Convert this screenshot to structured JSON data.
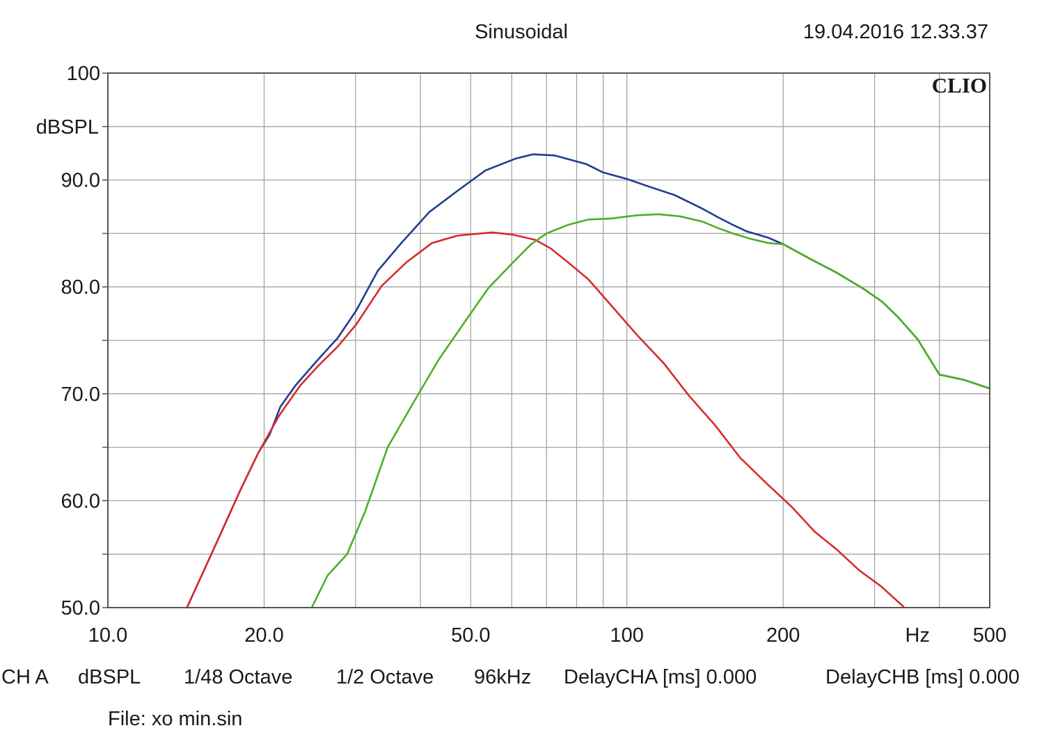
{
  "header": {
    "title": "Sinusoidal",
    "timestamp": "19.04.2016 12.33.37",
    "brand": "CLIO"
  },
  "footer": {
    "channel": "CH A",
    "units": "dBSPL",
    "resolution": "1/48 Octave",
    "smoothing": "1/2 Octave",
    "sample_rate": "96kHz",
    "delay_a": "DelayCHA [ms] 0.000",
    "delay_b": "DelayCHB [ms] 0.000",
    "file": "File: xo min.sin"
  },
  "chart_data": {
    "type": "line",
    "xscale": "log",
    "xlim": [
      10,
      500
    ],
    "ylim": [
      50,
      100
    ],
    "ylabel": "dBSPL",
    "xunit_label": "Hz",
    "grid": true,
    "x_ticks": [
      {
        "value": 10,
        "label": "10.0"
      },
      {
        "value": 20,
        "label": "20.0"
      },
      {
        "value": 50,
        "label": "50.0"
      },
      {
        "value": 100,
        "label": "100"
      },
      {
        "value": 200,
        "label": "200"
      },
      {
        "value": 500,
        "label": "500"
      }
    ],
    "x_gridlines": [
      20,
      30,
      40,
      50,
      60,
      70,
      80,
      90,
      100,
      200,
      300,
      400
    ],
    "y_ticks": [
      {
        "value": 50,
        "label": "50.0"
      },
      {
        "value": 60,
        "label": "60.0"
      },
      {
        "value": 70,
        "label": "70.0"
      },
      {
        "value": 80,
        "label": "80.0"
      },
      {
        "value": 90,
        "label": "90.0"
      },
      {
        "value": 100,
        "label": "100"
      }
    ],
    "y_gridlines": [
      55,
      60,
      65,
      70,
      75,
      80,
      85,
      90,
      95
    ],
    "series": [
      {
        "color": "#1f3d8f",
        "points": [
          [
            14.2,
            50
          ],
          [
            16,
            55.5
          ],
          [
            18,
            61
          ],
          [
            19.5,
            64.5
          ],
          [
            20.5,
            66.2
          ],
          [
            21.5,
            68.8
          ],
          [
            23,
            70.8
          ],
          [
            25.4,
            73.2
          ],
          [
            27.7,
            75.2
          ],
          [
            30.1,
            77.8
          ],
          [
            33.1,
            81.5
          ],
          [
            36.6,
            84
          ],
          [
            41.6,
            87
          ],
          [
            47.2,
            89
          ],
          [
            53.4,
            90.9
          ],
          [
            61,
            92
          ],
          [
            65.9,
            92.4
          ],
          [
            72.5,
            92.3
          ],
          [
            83.4,
            91.5
          ],
          [
            90,
            90.7
          ],
          [
            100,
            90.1
          ],
          [
            110,
            89.4
          ],
          [
            123.4,
            88.6
          ],
          [
            140,
            87.3
          ],
          [
            150,
            86.5
          ],
          [
            160,
            85.8
          ],
          [
            170,
            85.2
          ],
          [
            187.2,
            84.6
          ],
          [
            200,
            84
          ],
          [
            226,
            82.6
          ],
          [
            254.2,
            81.3
          ],
          [
            286.1,
            79.8
          ],
          [
            310.5,
            78.6
          ],
          [
            332.5,
            77.2
          ],
          [
            363.2,
            75.1
          ],
          [
            400,
            71.8
          ],
          [
            446.3,
            71.3
          ],
          [
            500,
            70.5
          ]
        ]
      },
      {
        "color": "#d42c2c",
        "points": [
          [
            14.2,
            50
          ],
          [
            16,
            55.5
          ],
          [
            18,
            61
          ],
          [
            19.5,
            64.5
          ],
          [
            21.4,
            68
          ],
          [
            23.5,
            70.8
          ],
          [
            25.4,
            72.6
          ],
          [
            27.7,
            74.4
          ],
          [
            30.1,
            76.5
          ],
          [
            33.7,
            80.1
          ],
          [
            37.6,
            82.3
          ],
          [
            42.1,
            84.1
          ],
          [
            47.2,
            84.8
          ],
          [
            55,
            85.1
          ],
          [
            60,
            84.9
          ],
          [
            66.6,
            84.4
          ],
          [
            71.3,
            83.6
          ],
          [
            77,
            82.3
          ],
          [
            84.3,
            80.7
          ],
          [
            94.3,
            78
          ],
          [
            104.6,
            75.5
          ],
          [
            118,
            72.8
          ],
          [
            131.3,
            69.9
          ],
          [
            148.2,
            67
          ],
          [
            165.4,
            64
          ],
          [
            186,
            61.6
          ],
          [
            208,
            59.4
          ],
          [
            230,
            57.1
          ],
          [
            254.2,
            55.4
          ],
          [
            280,
            53.5
          ],
          [
            308.7,
            52
          ],
          [
            341,
            50.1
          ]
        ]
      },
      {
        "color": "#4caf25",
        "points": [
          [
            24.7,
            50
          ],
          [
            26.5,
            53
          ],
          [
            28.9,
            55
          ],
          [
            31.3,
            59
          ],
          [
            34.6,
            65
          ],
          [
            38.7,
            69.1
          ],
          [
            43.4,
            73.2
          ],
          [
            49,
            76.9
          ],
          [
            54.1,
            79.9
          ],
          [
            60.1,
            82.2
          ],
          [
            65.4,
            84
          ],
          [
            70,
            85
          ],
          [
            77,
            85.8
          ],
          [
            84.3,
            86.3
          ],
          [
            93.3,
            86.4
          ],
          [
            104.6,
            86.7
          ],
          [
            115.1,
            86.8
          ],
          [
            126.6,
            86.6
          ],
          [
            140,
            86.1
          ],
          [
            149.8,
            85.5
          ],
          [
            160,
            85
          ],
          [
            173,
            84.5
          ],
          [
            187.2,
            84.1
          ],
          [
            200,
            84
          ],
          [
            226,
            82.6
          ],
          [
            254.2,
            81.3
          ],
          [
            286.1,
            79.8
          ],
          [
            310.5,
            78.6
          ],
          [
            332.5,
            77.2
          ],
          [
            363.2,
            75.1
          ],
          [
            400,
            71.8
          ],
          [
            446.3,
            71.3
          ],
          [
            500,
            70.5
          ]
        ]
      }
    ]
  }
}
